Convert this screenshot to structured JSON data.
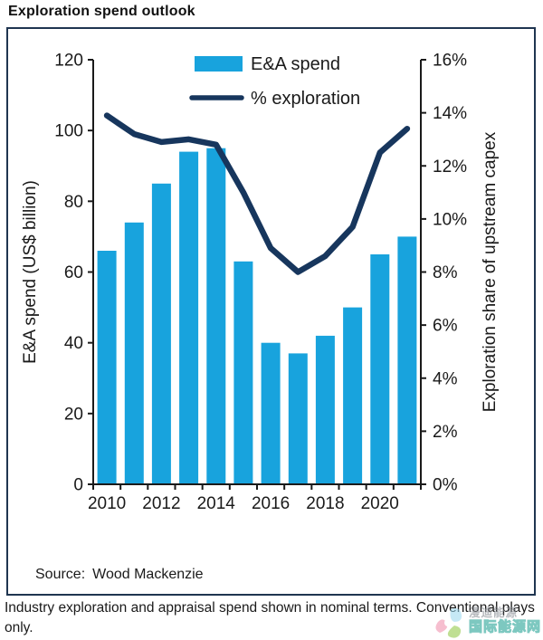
{
  "title": "Exploration spend outlook",
  "source": {
    "label": "Source:",
    "value": "Wood Mackenzie"
  },
  "footnote": "Industry exploration and appraisal spend shown in nominal terms. Conventional plays only.",
  "watermark": {
    "line1": "漫迪能源",
    "line2": "国际能源网"
  },
  "colors": {
    "bar": "#18A3DD",
    "line": "#17365D",
    "frame": "#1F3550",
    "axis": "#1a1a1a",
    "text": "#1a1a1a",
    "watermark_teal": "#2EA89A"
  },
  "chart_data": {
    "type": "bar",
    "subtype": "bar+line combo, dual axis",
    "categories": [
      2010,
      2011,
      2012,
      2013,
      2014,
      2015,
      2016,
      2017,
      2018,
      2019,
      2020,
      2021
    ],
    "x_tick_labels": [
      "2010",
      "2012",
      "2014",
      "2016",
      "2018",
      "2020"
    ],
    "series": [
      {
        "name": "E&A spend",
        "type": "bar",
        "axis": "left",
        "values": [
          66,
          74,
          85,
          94,
          95,
          63,
          40,
          37,
          42,
          50,
          65,
          70
        ]
      },
      {
        "name": "% exploration",
        "type": "line",
        "axis": "right",
        "values": [
          13.9,
          13.2,
          12.9,
          13.0,
          12.8,
          11.0,
          8.9,
          8.0,
          8.6,
          9.7,
          12.5,
          13.4
        ]
      }
    ],
    "left_axis": {
      "label": "E&A spend (US$ billion)",
      "min": 0,
      "max": 120,
      "step": 20,
      "suffix": ""
    },
    "right_axis": {
      "label": "Exploration share of upstream capex",
      "min": 0,
      "max": 16,
      "step": 2,
      "suffix": "%"
    },
    "legend": [
      {
        "label": "E&A spend",
        "swatch": "bar"
      },
      {
        "label": "% exploration",
        "swatch": "line"
      }
    ],
    "grid": false,
    "legend_position": "top-center-inside"
  }
}
